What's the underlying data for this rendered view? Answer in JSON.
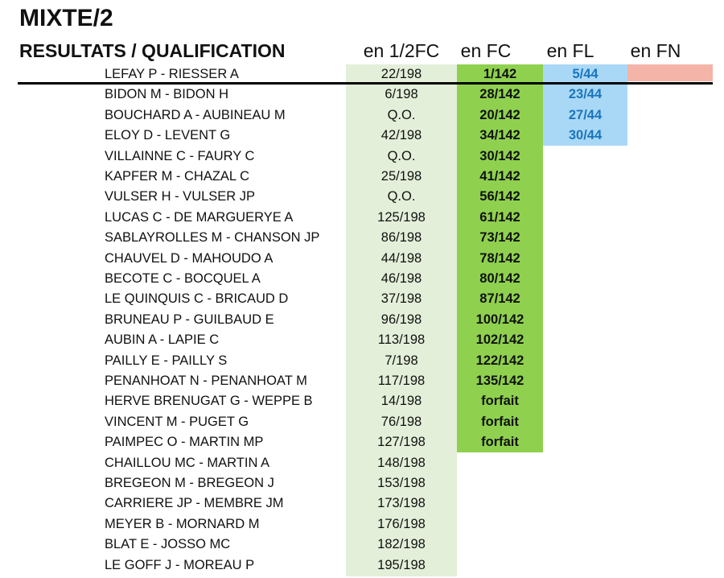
{
  "header": {
    "title": "MIXTE/2",
    "subtitle": "RESULTATS / QUALIFICATION",
    "columns": [
      "en 1/2FC",
      "en FC",
      "en FL",
      "en FN"
    ]
  },
  "table": {
    "rows": [
      {
        "name": "LEFAY P -  RIESSER A",
        "semi": "22/198",
        "fc": "1/142",
        "fl": "5/44"
      },
      {
        "name": "BIDON M - BIDON H",
        "semi": "6/198",
        "fc": "28/142",
        "fl": "23/44"
      },
      {
        "name": "BOUCHARD A - AUBINEAU M",
        "semi": "Q.O.",
        "fc": "20/142",
        "fl": "27/44"
      },
      {
        "name": "ELOY D - LEVENT G",
        "semi": "42/198",
        "fc": "34/142",
        "fl": "30/44"
      },
      {
        "name": "VILLAINNE C - FAURY C",
        "semi": "Q.O.",
        "fc": "30/142"
      },
      {
        "name": "KAPFER M - CHAZAL C",
        "semi": "25/198",
        "fc": "41/142"
      },
      {
        "name": "VULSER H - VULSER JP",
        "semi": "Q.O.",
        "fc": "56/142"
      },
      {
        "name": "LUCAS C - DE MARGUERYE A",
        "semi": "125/198",
        "fc": "61/142"
      },
      {
        "name": "SABLAYROLLES M - CHANSON JP",
        "semi": "86/198",
        "fc": "73/142"
      },
      {
        "name": "CHAUVEL D - MAHOUDO A",
        "semi": "44/198",
        "fc": "78/142"
      },
      {
        "name": "BECOTE C - BOCQUEL A",
        "semi": "46/198",
        "fc": "80/142"
      },
      {
        "name": "LE QUINQUIS C - BRICAUD D",
        "semi": "37/198",
        "fc": "87/142"
      },
      {
        "name": "BRUNEAU P - GUILBAUD E",
        "semi": "96/198",
        "fc": "100/142"
      },
      {
        "name": "AUBIN A - LAPIE C",
        "semi": "113/198",
        "fc": "102/142"
      },
      {
        "name": "PAILLY E - PAILLY S",
        "semi": "7/198",
        "fc": "122/142"
      },
      {
        "name": "PENANHOAT N - PENANHOAT M",
        "semi": "117/198",
        "fc": "135/142"
      },
      {
        "name": "HERVE BRENUGAT G - WEPPE B",
        "semi": "14/198",
        "fc": "forfait"
      },
      {
        "name": "VINCENT M - PUGET G",
        "semi": "76/198",
        "fc": "forfait"
      },
      {
        "name": "PAIMPEC O - MARTIN MP",
        "semi": "127/198",
        "fc": "forfait"
      },
      {
        "name": "CHAILLOU MC - MARTIN A",
        "semi": "148/198"
      },
      {
        "name": "BREGEON M - BREGEON J",
        "semi": "153/198"
      },
      {
        "name": "CARRIERE JP - MEMBRE JM",
        "semi": "173/198"
      },
      {
        "name": "MEYER B - MORNARD M",
        "semi": "176/198"
      },
      {
        "name": "BLAT E - JOSSO MC",
        "semi": "182/198"
      },
      {
        "name": "LE GOFF J - MOREAU P",
        "semi": "195/198"
      }
    ]
  }
}
